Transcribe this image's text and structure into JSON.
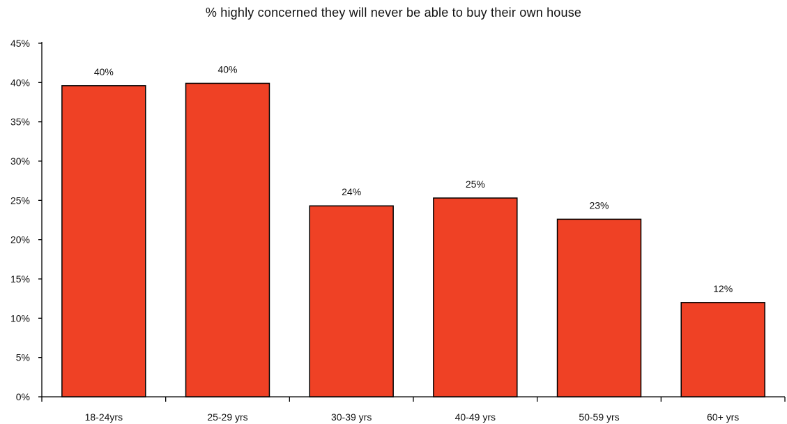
{
  "chart_data": {
    "type": "bar",
    "title": "% highly concerned they will never be able to buy their own house",
    "xlabel": "",
    "ylabel": "",
    "categories": [
      "18-24yrs",
      "25-29 yrs",
      "30-39 yrs",
      "40-49 yrs",
      "50-59 yrs",
      "60+ yrs"
    ],
    "values": [
      39.6,
      39.9,
      24.3,
      25.3,
      22.6,
      12.0
    ],
    "data_labels": [
      "40%",
      "40%",
      "24%",
      "25%",
      "23%",
      "12%"
    ],
    "ylim": [
      0,
      45
    ],
    "yticks": [
      0,
      5,
      10,
      15,
      20,
      25,
      30,
      35,
      40,
      45
    ],
    "ytick_labels": [
      "0%",
      "5%",
      "10%",
      "15%",
      "20%",
      "25%",
      "30%",
      "35%",
      "40%",
      "45%"
    ],
    "grid": false,
    "legend": "none",
    "colors": {
      "bar_fill": "#EF4125",
      "bar_stroke": "#000000",
      "axis": "#000000"
    }
  }
}
